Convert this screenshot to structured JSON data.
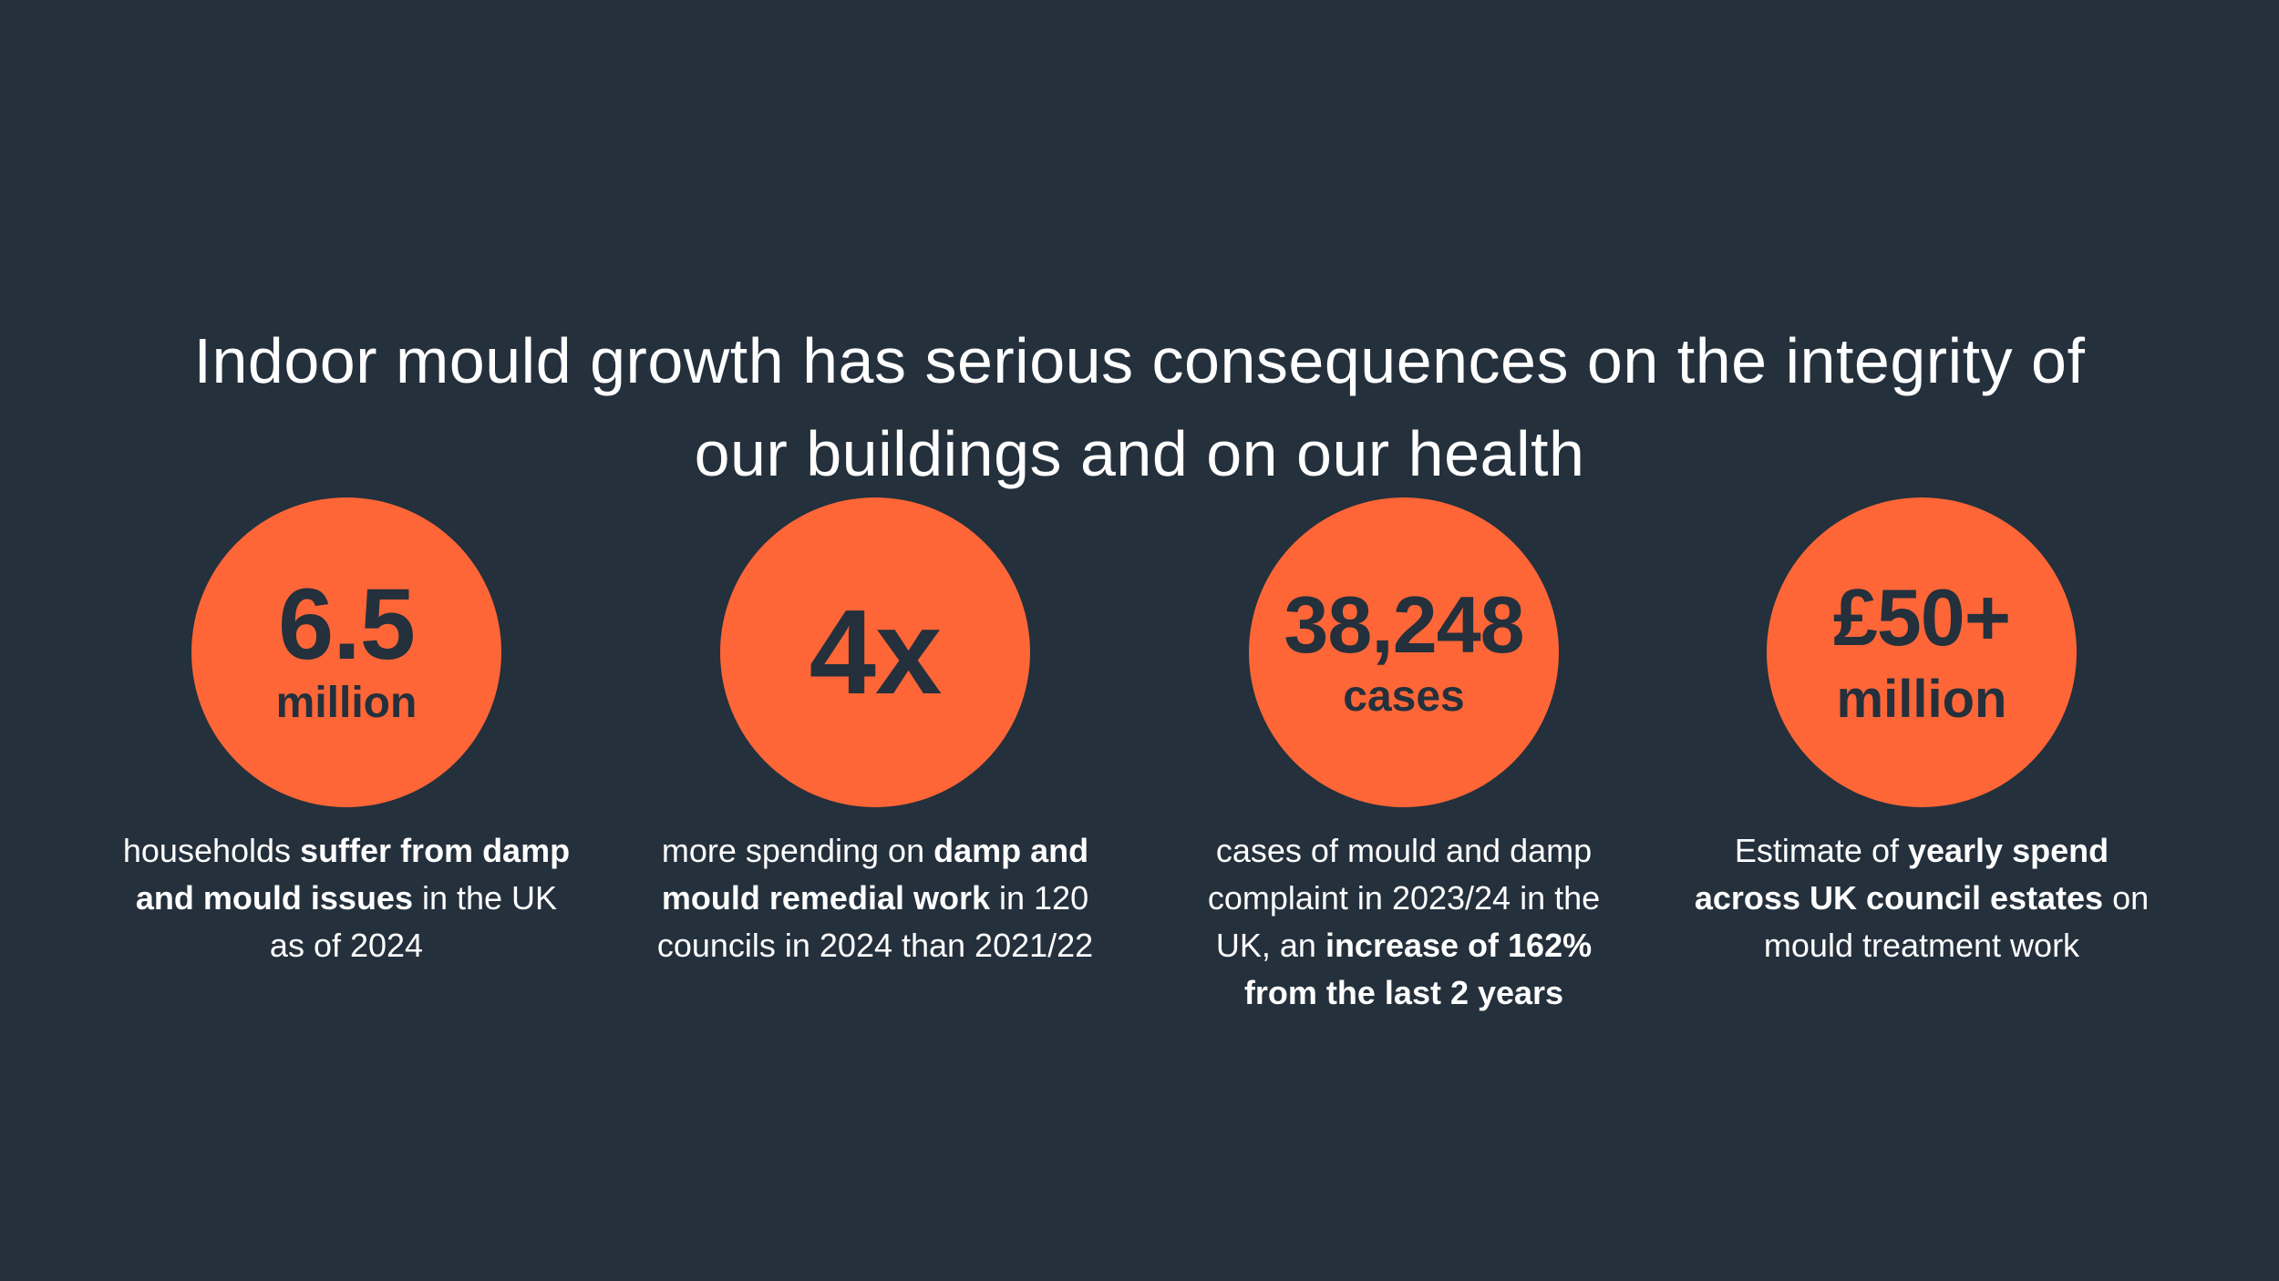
{
  "headline": {
    "line1": "Indoor mould growth has serious consequences on the integrity of",
    "line2": "our buildings and on our health"
  },
  "stats": [
    {
      "value": "6.5",
      "unit": "million",
      "desc": {
        "a": "households ",
        "b": "suffer from damp and mould issues",
        "c": " in the UK as of 2024"
      }
    },
    {
      "value": "4x",
      "unit": "",
      "desc": {
        "a": "more spending on ",
        "b": "damp and mould remedial work",
        "c": " in 120 councils in 2024 than 2021/22"
      }
    },
    {
      "value": "38,248",
      "unit": "cases",
      "desc": {
        "a": "cases of mould and damp complaint in 2023/24 in the UK, an ",
        "b": "increase of 162% from the last 2 years",
        "c": ""
      }
    },
    {
      "value": "£50+",
      "unit": "million",
      "desc": {
        "a": "Estimate of ",
        "b": "yearly spend across UK council estates",
        "c": " on mould treatment work"
      }
    }
  ],
  "colors": {
    "background": "#24303c",
    "accent": "#ff6637",
    "text": "#ffffff"
  }
}
